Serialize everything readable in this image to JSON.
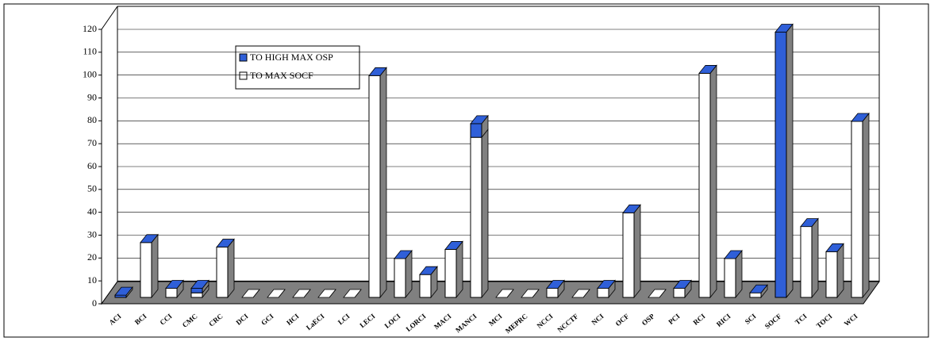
{
  "chart_data": {
    "type": "bar3d_stacked",
    "categories": [
      "ACI",
      "BCI",
      "CCI",
      "CMC",
      "CRC",
      "DCI",
      "GCI",
      "HCI",
      "LaECI",
      "LCI",
      "LECI",
      "LOCI",
      "LORCI",
      "MACI",
      "MANCI",
      "MCI",
      "MEPRC",
      "NCCI",
      "NCCTF",
      "NCI",
      "OCF",
      "OSP",
      "PCI",
      "RCI",
      "RICI",
      "SCI",
      "SOCF",
      "TCI",
      "TOCI",
      "WCI"
    ],
    "series": [
      {
        "name": "TO MAX SOCF",
        "color": "#ffffff",
        "values": [
          0,
          24,
          4,
          2,
          22,
          0,
          0,
          0,
          0,
          0,
          97,
          17,
          10,
          21,
          70,
          0,
          0,
          4,
          0,
          4,
          37,
          0,
          4,
          98,
          17,
          2,
          0,
          31,
          20,
          77
        ]
      },
      {
        "name": "TO HIGH MAX OSP",
        "color": "#2f5fd8",
        "values": [
          1,
          0,
          0,
          2,
          0,
          0,
          0,
          0,
          0,
          0,
          0,
          0,
          0,
          0,
          6,
          0,
          0,
          0,
          0,
          0,
          0,
          0,
          0,
          0,
          0,
          0,
          116,
          0,
          0,
          0
        ]
      }
    ],
    "legend_order": [
      1,
      0
    ],
    "ylim": [
      0,
      120
    ],
    "yticks": [
      0,
      10,
      20,
      30,
      40,
      50,
      60,
      70,
      80,
      90,
      100,
      110,
      120
    ],
    "grid": true
  }
}
